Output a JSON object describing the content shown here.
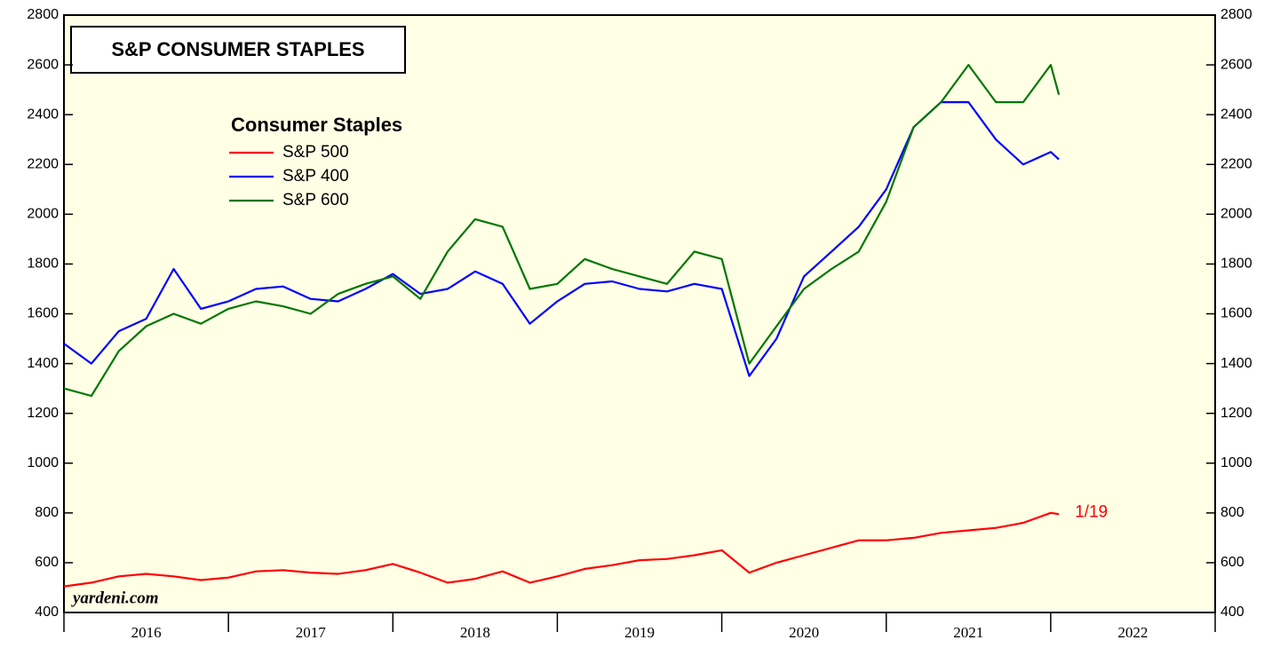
{
  "chart_data": {
    "type": "line",
    "title": "S&P CONSUMER STAPLES",
    "legend_title": "Consumer Staples",
    "annotation": "1/19",
    "source": "yardeni.com",
    "x": [
      2016,
      2016.167,
      2016.333,
      2016.5,
      2016.667,
      2016.833,
      2017,
      2017.167,
      2017.333,
      2017.5,
      2017.667,
      2017.833,
      2018,
      2018.167,
      2018.333,
      2018.5,
      2018.667,
      2018.833,
      2019,
      2019.167,
      2019.333,
      2019.5,
      2019.667,
      2019.833,
      2020,
      2020.167,
      2020.333,
      2020.5,
      2020.667,
      2020.833,
      2021,
      2021.167,
      2021.333,
      2021.5,
      2021.667,
      2021.833,
      2022,
      2022.05
    ],
    "series": [
      {
        "name": "S&P 500",
        "color": "#ff0000",
        "values": [
          505,
          520,
          545,
          555,
          545,
          530,
          540,
          565,
          570,
          560,
          555,
          570,
          595,
          560,
          520,
          535,
          565,
          520,
          545,
          575,
          590,
          610,
          615,
          630,
          650,
          560,
          600,
          630,
          660,
          690,
          690,
          700,
          720,
          730,
          740,
          760,
          800,
          795
        ]
      },
      {
        "name": "S&P 400",
        "color": "#0000ff",
        "values": [
          1480,
          1400,
          1530,
          1580,
          1780,
          1620,
          1650,
          1700,
          1710,
          1660,
          1650,
          1700,
          1760,
          1680,
          1700,
          1770,
          1720,
          1560,
          1650,
          1720,
          1730,
          1700,
          1690,
          1720,
          1700,
          1350,
          1500,
          1750,
          1850,
          1950,
          2100,
          2350,
          2450,
          2450,
          2300,
          2200,
          2250,
          2220
        ]
      },
      {
        "name": "S&P 600",
        "color": "#007700",
        "values": [
          1300,
          1270,
          1450,
          1550,
          1600,
          1560,
          1620,
          1650,
          1630,
          1600,
          1680,
          1720,
          1750,
          1660,
          1850,
          1980,
          1950,
          1700,
          1720,
          1820,
          1780,
          1750,
          1720,
          1850,
          1820,
          1400,
          1550,
          1700,
          1780,
          1850,
          2050,
          2350,
          2450,
          2600,
          2450,
          2450,
          2600,
          2480
        ]
      }
    ],
    "xlim": [
      2016,
      2023
    ],
    "xticks": [
      2016,
      2017,
      2018,
      2019,
      2020,
      2021,
      2022,
      2023
    ],
    "year_labels": [
      "2016",
      "2017",
      "2018",
      "2019",
      "2020",
      "2021",
      "2022"
    ],
    "ylim": [
      400,
      2800
    ],
    "yticks": [
      400,
      600,
      800,
      1000,
      1200,
      1400,
      1600,
      1800,
      2000,
      2200,
      2400,
      2600,
      2800
    ],
    "grid": false,
    "legend": "upper left"
  }
}
